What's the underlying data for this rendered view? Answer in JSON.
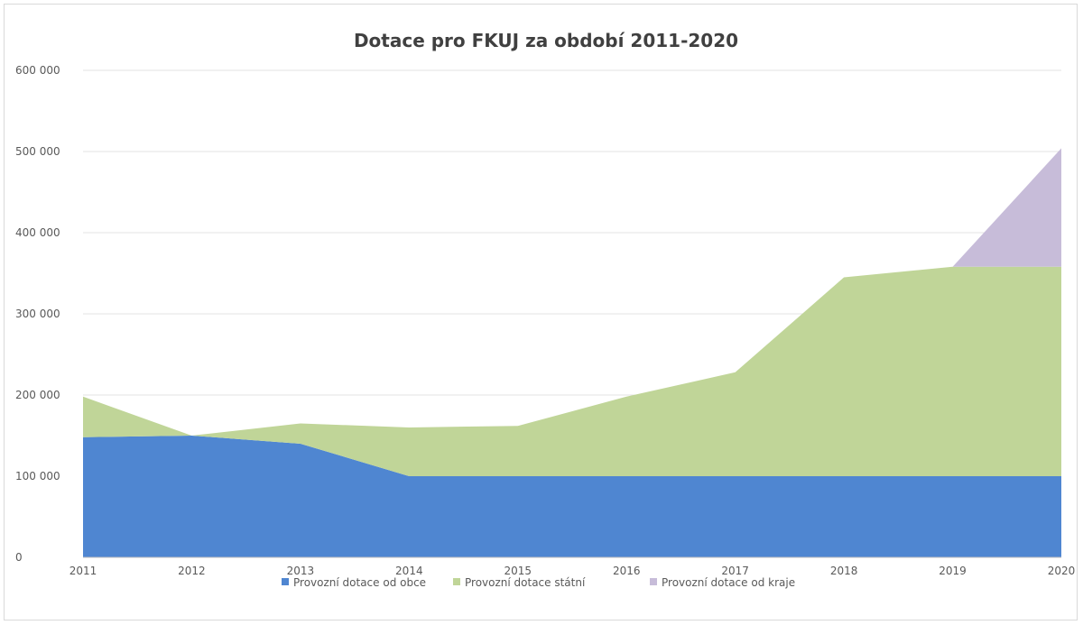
{
  "chart_data": {
    "type": "area",
    "stacked": true,
    "title": "Dotace pro FKUJ za období 2011-2020",
    "xlabel": "",
    "ylabel": "",
    "x": [
      "2011",
      "2012",
      "2013",
      "2014",
      "2015",
      "2016",
      "2017",
      "2018",
      "2019",
      "2020"
    ],
    "ylim": [
      0,
      600000
    ],
    "yticks": [
      0,
      100000,
      200000,
      300000,
      400000,
      500000,
      600000
    ],
    "ytick_labels": [
      "0",
      "100 000",
      "200 000",
      "300 000",
      "400 000",
      "500 000",
      "600 000"
    ],
    "grid": true,
    "legend_position": "bottom",
    "series": [
      {
        "name": "Provozní dotace od obce",
        "color": "#4f86d1",
        "values": [
          148000,
          150000,
          140000,
          100000,
          100000,
          100000,
          100000,
          100000,
          100000,
          100000
        ]
      },
      {
        "name": "Provozní dotace státní",
        "color": "#c0d598",
        "values": [
          50000,
          0,
          25000,
          60000,
          62000,
          98000,
          128000,
          245000,
          258000,
          258000
        ]
      },
      {
        "name": "Provozní dotace od kraje",
        "color": "#c7bcd9",
        "values": [
          0,
          0,
          0,
          0,
          0,
          0,
          0,
          0,
          0,
          146000
        ]
      }
    ]
  }
}
